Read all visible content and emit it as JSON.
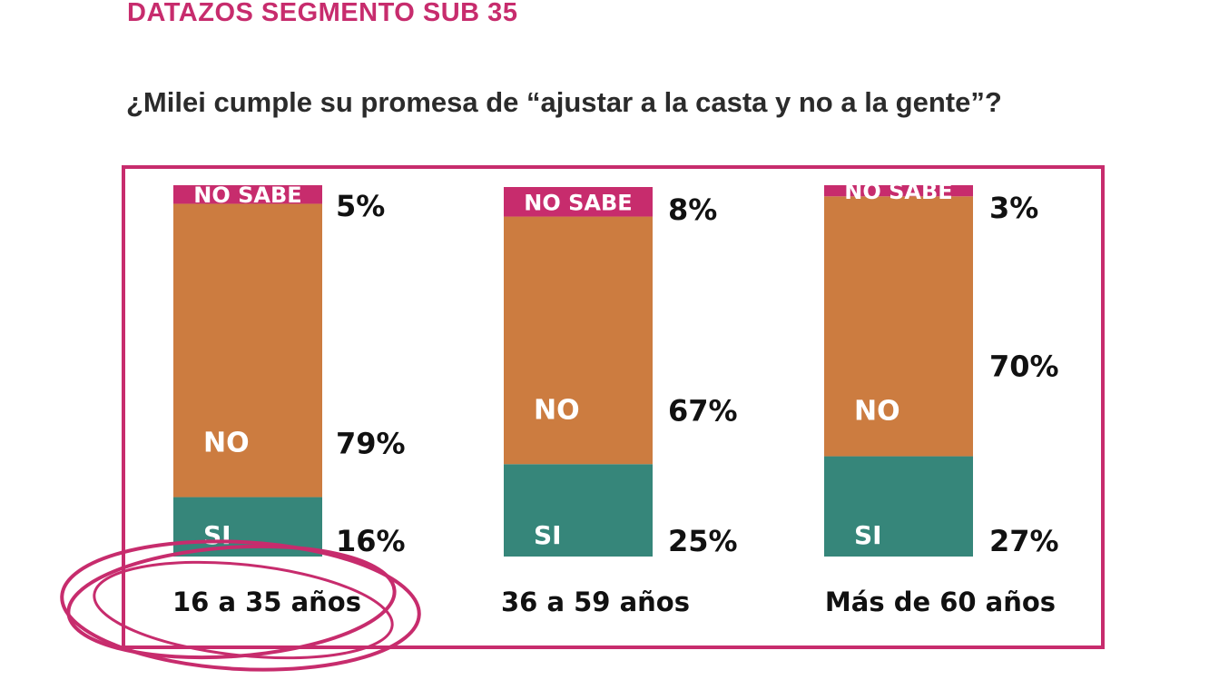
{
  "header": "DATAZOS SEGMENTO SUB 35",
  "question": "¿Milei cumple su promesa de “ajustar a la casta y no a la gente”?",
  "colors": {
    "accent": "#c72c6d",
    "si": "#36867a",
    "no": "#cc7c40",
    "no_sabe": "#c72c6d"
  },
  "chart_data": {
    "type": "bar",
    "stacked": true,
    "percent_stacked": true,
    "categories": [
      "16 a 35 años",
      "36 a 59 años",
      "Más de 60 años"
    ],
    "series": [
      {
        "name": "SI",
        "values": [
          16,
          25,
          27
        ],
        "labels": [
          "16%",
          "25%",
          "27%"
        ]
      },
      {
        "name": "NO",
        "values": [
          79,
          67,
          70
        ],
        "labels": [
          "79%",
          "67%",
          "70%"
        ]
      },
      {
        "name": "NO SABE",
        "values": [
          5,
          8,
          3
        ],
        "labels": [
          "5%",
          "8%",
          "3%"
        ]
      }
    ],
    "highlighted_category": "16 a 35 años",
    "ylim": [
      0,
      100
    ]
  }
}
